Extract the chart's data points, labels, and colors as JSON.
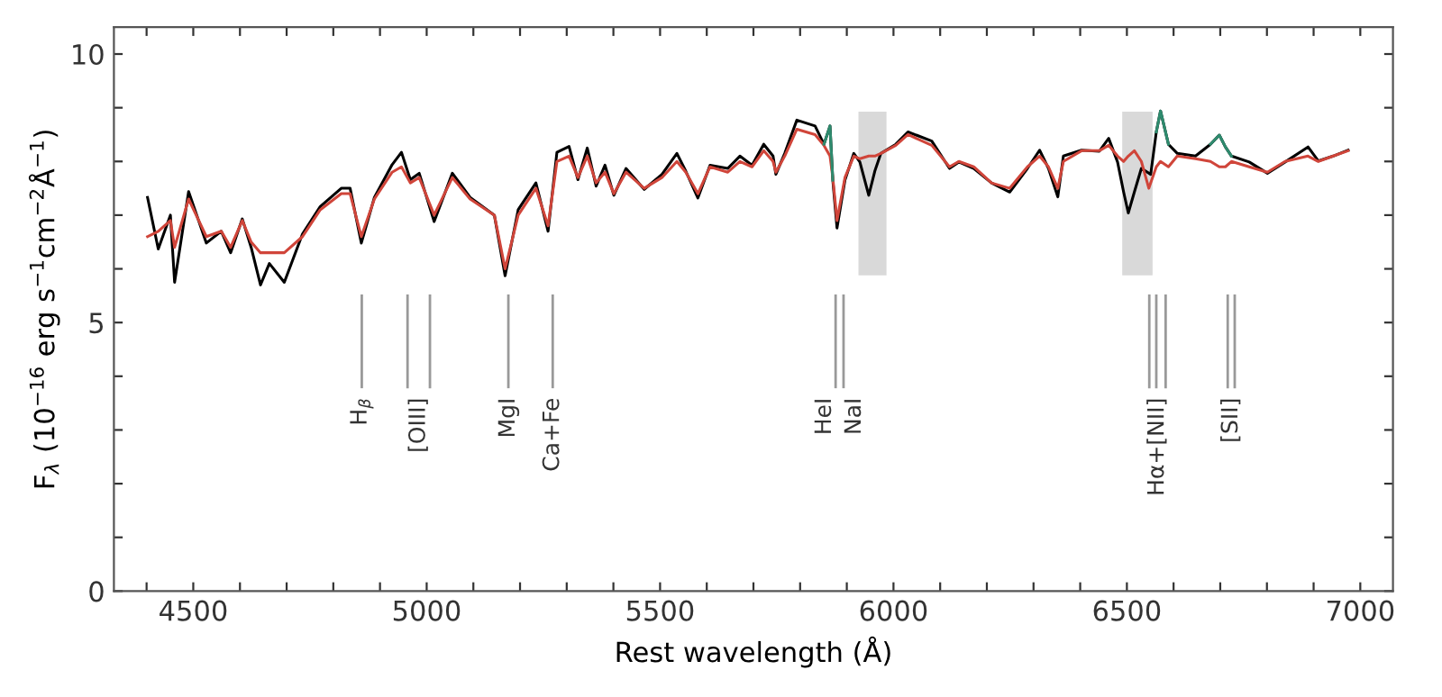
{
  "chart_data": {
    "type": "line",
    "xlabel": "Rest wavelength (Å)",
    "ylabel": "F$_{λ}$ (10$^{−16}$ erg s$^{−1}$cm$^{−2}$Å$^{−1}$)",
    "xlim": [
      4330,
      7070
    ],
    "ylim": [
      0,
      10.5
    ],
    "xticks": [
      {
        "value": 4400,
        "label": null
      },
      4500,
      {
        "value": 4600,
        "label": null
      },
      {
        "value": 4700,
        "label": null
      },
      {
        "value": 4800,
        "label": null
      },
      {
        "value": 4900,
        "label": null
      },
      5000,
      {
        "value": 5100,
        "label": null
      },
      {
        "value": 5200,
        "label": null
      },
      {
        "value": 5300,
        "label": null
      },
      {
        "value": 5400,
        "label": null
      },
      5500,
      {
        "value": 5600,
        "label": null
      },
      {
        "value": 5700,
        "label": null
      },
      {
        "value": 5800,
        "label": null
      },
      {
        "value": 5900,
        "label": null
      },
      6000,
      {
        "value": 6100,
        "label": null
      },
      {
        "value": 6200,
        "label": null
      },
      {
        "value": 6300,
        "label": null
      },
      {
        "value": 6400,
        "label": null
      },
      6500,
      {
        "value": 6600,
        "label": null
      },
      {
        "value": 6700,
        "label": null
      },
      {
        "value": 6800,
        "label": null
      },
      {
        "value": 6900,
        "label": null
      },
      7000
    ],
    "yticks": [
      0,
      {
        "value": 1,
        "label": null
      },
      {
        "value": 2,
        "label": null
      },
      {
        "value": 3,
        "label": null
      },
      {
        "value": 4,
        "label": null
      },
      5,
      {
        "value": 6,
        "label": null
      },
      {
        "value": 7,
        "label": null
      },
      {
        "value": 8,
        "label": null
      },
      {
        "value": 9,
        "label": null
      },
      10
    ],
    "grid": false,
    "bands": [
      {
        "axis": "x",
        "from": 5925,
        "to": 5985,
        "color": "#d9d9d9"
      },
      {
        "axis": "x",
        "from": 6490,
        "to": 6555,
        "color": "#d9d9d9"
      }
    ],
    "series": [
      {
        "color": "#000000",
        "x": [
          4402,
          4425,
          4451,
          4460,
          4490,
          4528,
          4560,
          4580,
          4605,
          4624,
          4644,
          4663,
          4695,
          4734,
          4772,
          4817,
          4836,
          4860,
          4888,
          4926,
          4946,
          4965,
          4984,
          5016,
          5055,
          5093,
          5145,
          5168,
          5196,
          5234,
          5260,
          5279,
          5305,
          5324,
          5344,
          5363,
          5382,
          5401,
          5427,
          5466,
          5504,
          5536,
          5555,
          5581,
          5607,
          5645,
          5671,
          5697,
          5722,
          5742,
          5748,
          5767,
          5793,
          5832,
          5851,
          5864,
          5870,
          5879,
          5896,
          5915,
          5928,
          5947,
          5960,
          5973,
          6005,
          6031,
          6082,
          6120,
          6140,
          6172,
          6210,
          6249,
          6287,
          6313,
          6332,
          6352,
          6364,
          6403,
          6441,
          6461,
          6480,
          6493,
          6503,
          6516,
          6531,
          6551,
          6563,
          6572,
          6589,
          6608,
          6647,
          6679,
          6698,
          6711,
          6724,
          6762,
          6801,
          6839,
          6888,
          6910,
          6942,
          6974
        ],
        "values": [
          7.33,
          6.37,
          7.0,
          5.75,
          7.44,
          6.48,
          6.7,
          6.3,
          6.93,
          6.4,
          5.7,
          6.1,
          5.75,
          6.65,
          7.16,
          7.5,
          7.5,
          6.48,
          7.33,
          7.94,
          8.17,
          7.66,
          7.78,
          6.88,
          7.78,
          7.33,
          7.0,
          5.87,
          7.1,
          7.6,
          6.7,
          8.17,
          8.28,
          7.66,
          8.25,
          7.54,
          7.93,
          7.37,
          7.87,
          7.48,
          7.76,
          8.15,
          7.82,
          7.32,
          7.93,
          7.87,
          8.1,
          7.93,
          8.32,
          8.1,
          7.76,
          8.15,
          8.77,
          8.66,
          8.32,
          8.66,
          7.65,
          6.76,
          7.65,
          8.15,
          7.99,
          7.37,
          7.82,
          8.15,
          8.32,
          8.55,
          8.38,
          7.87,
          7.99,
          7.87,
          7.6,
          7.43,
          7.87,
          8.21,
          7.87,
          7.34,
          8.1,
          8.21,
          8.19,
          8.43,
          7.99,
          7.43,
          7.04,
          7.43,
          7.87,
          7.76,
          8.55,
          8.94,
          8.32,
          8.15,
          8.1,
          8.32,
          8.49,
          8.27,
          8.1,
          7.99,
          7.78,
          7.99,
          8.27,
          8.01,
          8.1,
          8.21
        ]
      },
      {
        "color": "#d0453a",
        "x": [
          4402,
          4425,
          4451,
          4460,
          4490,
          4528,
          4560,
          4580,
          4605,
          4624,
          4644,
          4663,
          4695,
          4734,
          4772,
          4817,
          4836,
          4860,
          4888,
          4926,
          4946,
          4965,
          4984,
          5016,
          5055,
          5093,
          5145,
          5168,
          5196,
          5234,
          5260,
          5279,
          5305,
          5324,
          5344,
          5363,
          5382,
          5401,
          5427,
          5466,
          5504,
          5536,
          5555,
          5581,
          5607,
          5645,
          5671,
          5697,
          5722,
          5742,
          5748,
          5767,
          5793,
          5832,
          5851,
          5864,
          5870,
          5879,
          5896,
          5915,
          5928,
          5947,
          5960,
          5973,
          6005,
          6031,
          6082,
          6120,
          6140,
          6172,
          6210,
          6249,
          6287,
          6313,
          6332,
          6352,
          6364,
          6403,
          6441,
          6461,
          6480,
          6493,
          6503,
          6516,
          6531,
          6547,
          6563,
          6572,
          6589,
          6608,
          6647,
          6679,
          6698,
          6711,
          6724,
          6762,
          6801,
          6839,
          6888,
          6910,
          6942,
          6974
        ],
        "values": [
          6.6,
          6.7,
          6.9,
          6.4,
          7.3,
          6.6,
          6.7,
          6.4,
          6.9,
          6.5,
          6.3,
          6.3,
          6.3,
          6.6,
          7.1,
          7.4,
          7.4,
          6.6,
          7.3,
          7.8,
          7.9,
          7.6,
          7.7,
          7.0,
          7.7,
          7.3,
          7.0,
          6.0,
          7.0,
          7.5,
          6.8,
          8.0,
          8.1,
          7.7,
          8.1,
          7.6,
          7.8,
          7.4,
          7.8,
          7.5,
          7.7,
          8.0,
          7.8,
          7.4,
          7.9,
          7.8,
          8.0,
          7.9,
          8.2,
          8.0,
          7.8,
          8.1,
          8.6,
          8.5,
          8.3,
          8.1,
          7.7,
          6.9,
          7.7,
          8.1,
          8.05,
          8.1,
          8.1,
          8.15,
          8.3,
          8.5,
          8.3,
          7.9,
          8.0,
          7.9,
          7.6,
          7.5,
          7.9,
          8.1,
          7.9,
          7.5,
          8.0,
          8.2,
          8.2,
          8.3,
          8.1,
          8.0,
          8.1,
          8.2,
          8.0,
          7.5,
          7.9,
          8.0,
          7.9,
          8.1,
          8.05,
          8.0,
          7.9,
          7.9,
          8.0,
          7.9,
          7.8,
          8.0,
          8.1,
          8.0,
          8.1,
          8.2
        ]
      },
      {
        "color": "#2e8b6e",
        "x": [
          5851,
          5864,
          5870,
          null,
          6563,
          6572,
          6589,
          null,
          6679,
          6698,
          6711,
          6724
        ],
        "values": [
          8.32,
          8.66,
          7.65,
          null,
          8.55,
          8.94,
          8.32,
          null,
          8.32,
          8.49,
          8.27,
          8.1
        ]
      },
      {
        "color": "#999999",
        "x": [
          4861,
          4861
        ],
        "values": [
          3.8,
          5.5
        ]
      },
      {
        "color": "#999999",
        "x": [
          4959,
          4959,
          null,
          5007,
          5007
        ],
        "values": [
          3.8,
          5.5,
          null,
          3.8,
          5.5
        ]
      },
      {
        "color": "#999999",
        "x": [
          5175,
          5175
        ],
        "values": [
          3.8,
          5.5
        ]
      },
      {
        "color": "#999999",
        "x": [
          5270,
          5270
        ],
        "values": [
          3.8,
          5.5
        ]
      },
      {
        "color": "#999999",
        "x": [
          5876,
          5876
        ],
        "values": [
          3.8,
          5.5
        ]
      },
      {
        "color": "#999999",
        "x": [
          5893,
          5893
        ],
        "values": [
          3.8,
          5.5
        ]
      },
      {
        "color": "#999999",
        "x": [
          6548,
          6548,
          null,
          6563,
          6563,
          null,
          6583,
          6583
        ],
        "values": [
          3.8,
          5.5,
          null,
          3.8,
          5.5,
          null,
          3.8,
          5.5
        ]
      },
      {
        "color": "#999999",
        "x": [
          6716,
          6716,
          null,
          6731,
          6731
        ],
        "values": [
          3.8,
          5.5,
          null,
          3.8,
          5.5
        ]
      }
    ],
    "annotations": [
      "H$_{β}$",
      "[OIII]",
      "MgI",
      "Ca+Fe",
      "HeI",
      "NaI",
      "Hα+[NII]",
      "[SII]"
    ]
  }
}
